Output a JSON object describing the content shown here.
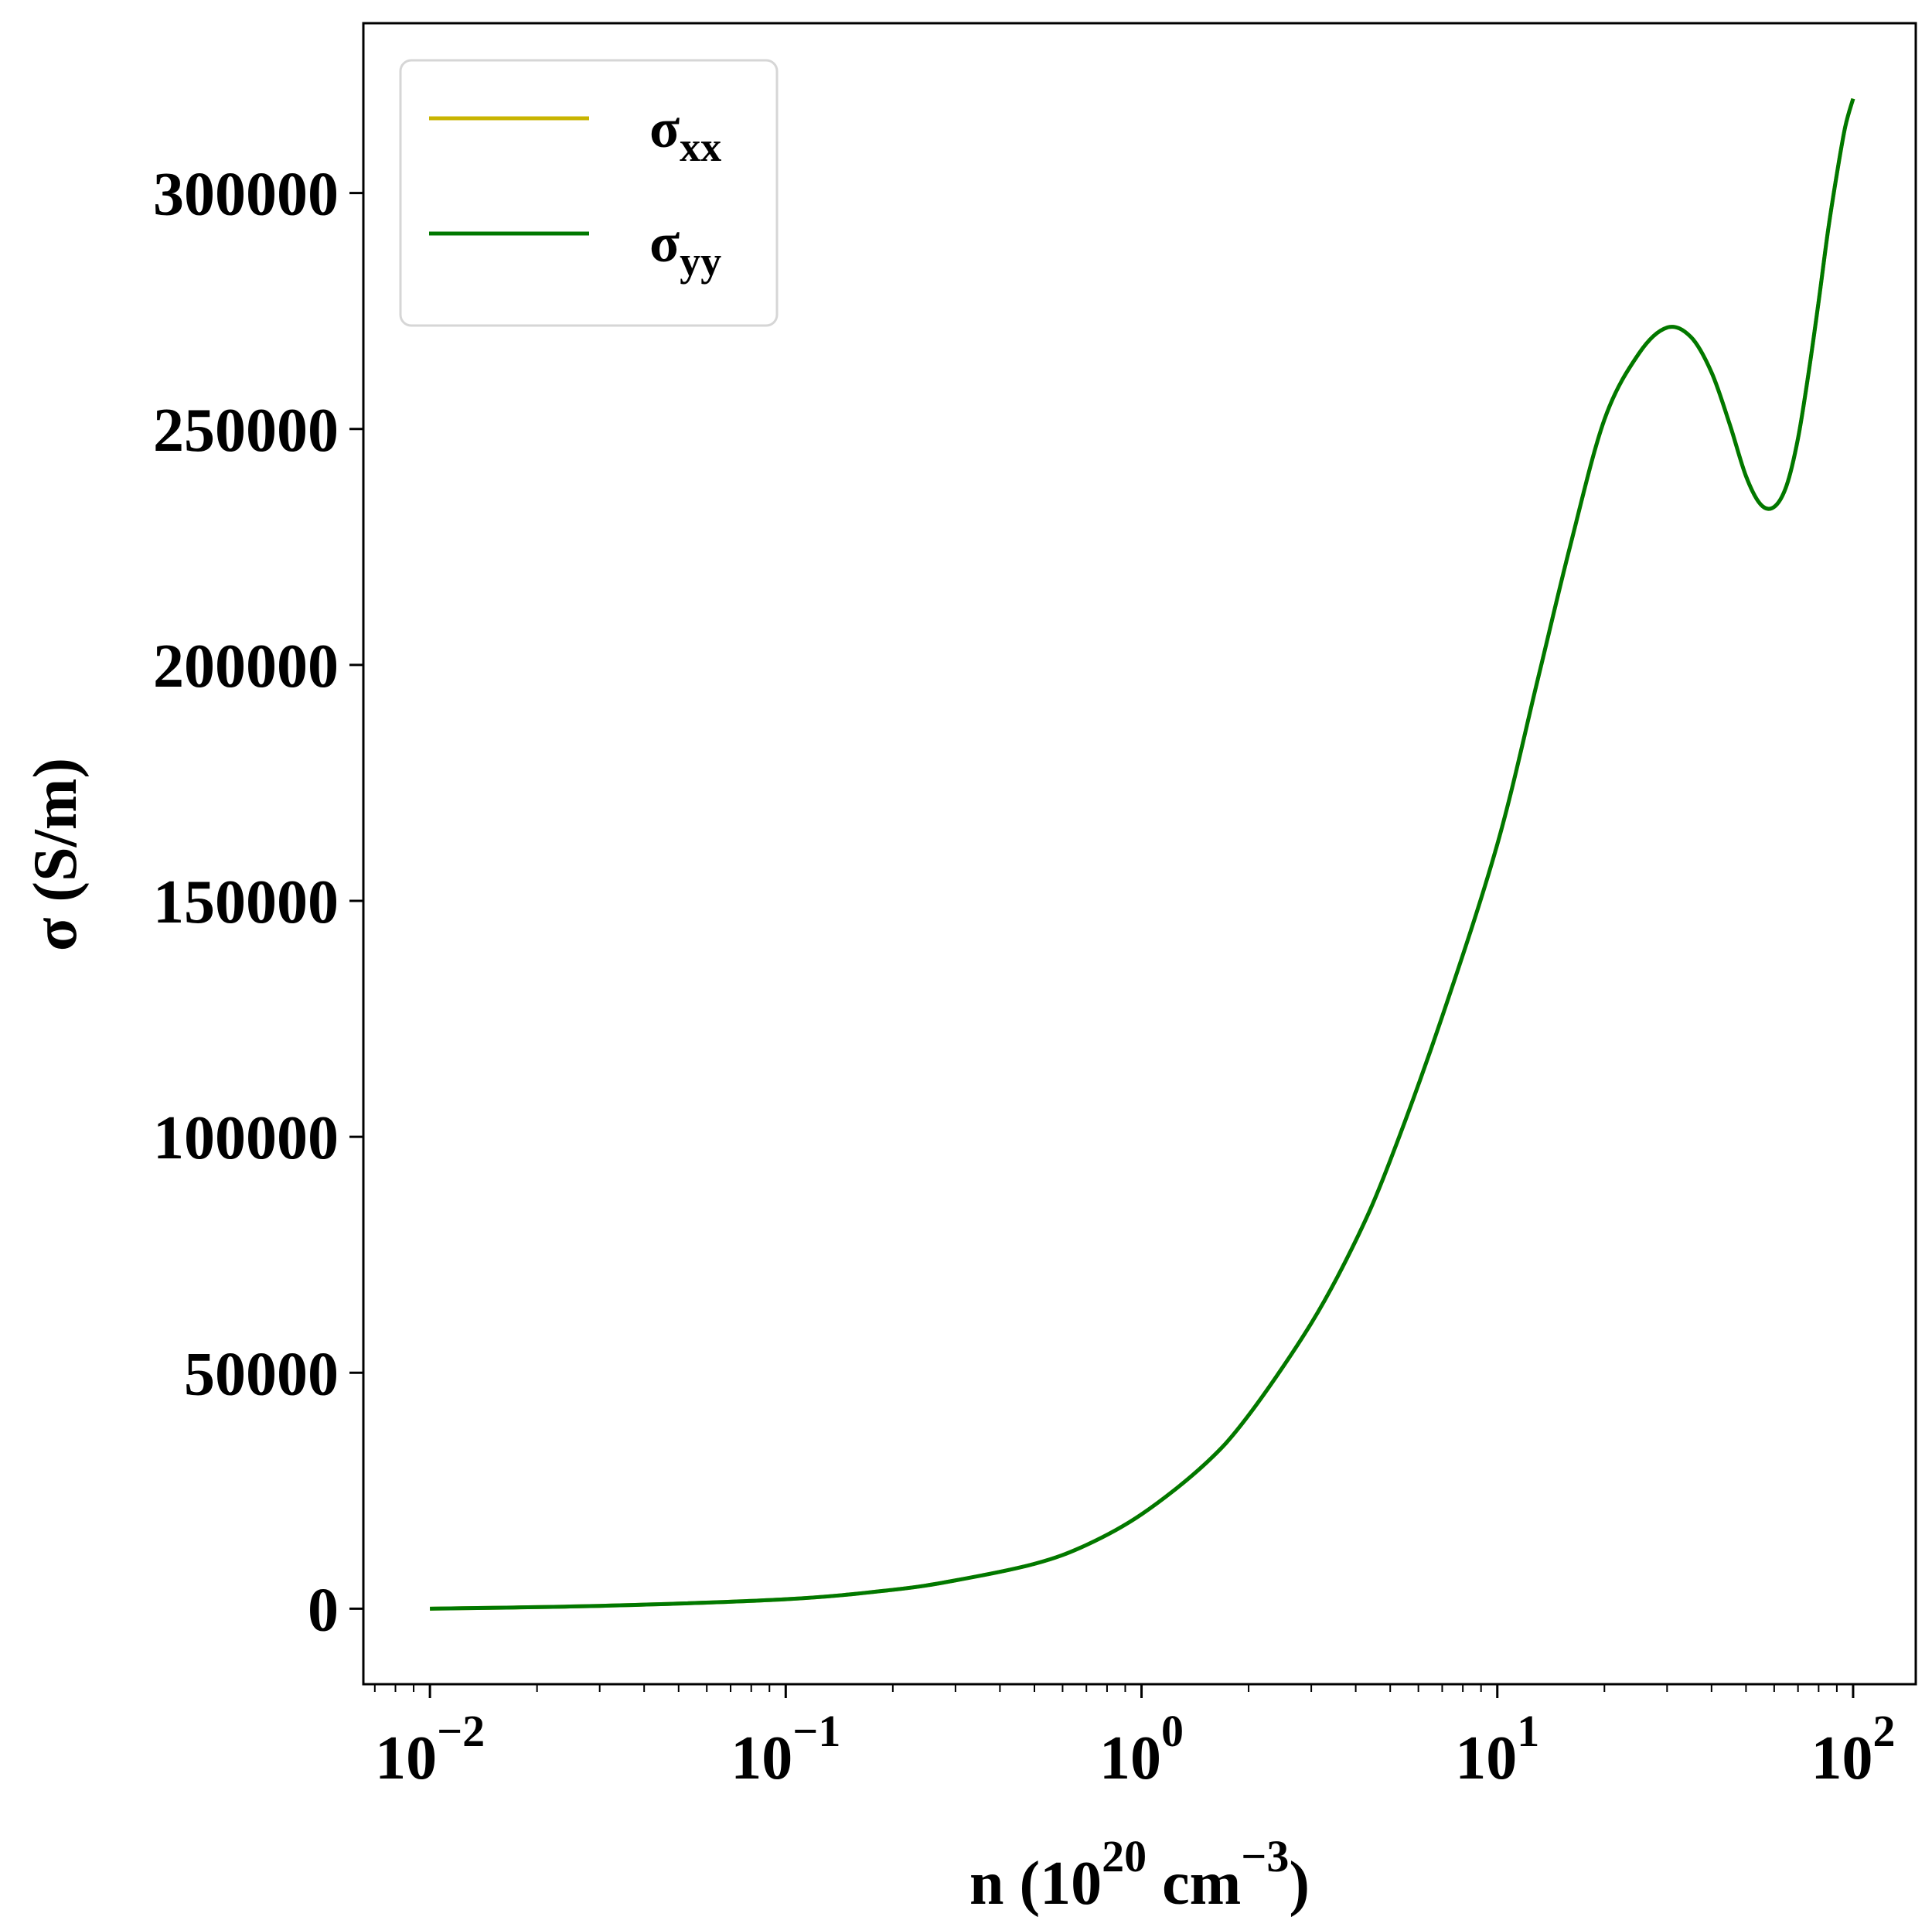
{
  "chart_data": {
    "type": "line",
    "x_scale": "log",
    "xlabel": {
      "base": "n (10",
      "exp1": "20",
      "mid": " cm",
      "exp2": "−3",
      "end": ")"
    },
    "ylabel": "σ (S/m)",
    "xlim": [
      0.0065,
      150
    ],
    "ylim": [
      -16000,
      336000
    ],
    "grid": false,
    "legend_position": "top-left",
    "x_ticks": [
      {
        "base": "10",
        "exp": "−2",
        "value": 0.01
      },
      {
        "base": "10",
        "exp": "−1",
        "value": 0.1
      },
      {
        "base": "10",
        "exp": "0",
        "value": 1
      },
      {
        "base": "10",
        "exp": "1",
        "value": 10
      },
      {
        "base": "10",
        "exp": "2",
        "value": 100
      }
    ],
    "y_ticks": [
      {
        "label": "0",
        "value": 0
      },
      {
        "label": "50000",
        "value": 50000
      },
      {
        "label": "100000",
        "value": 100000
      },
      {
        "label": "150000",
        "value": 150000
      },
      {
        "label": "200000",
        "value": 200000
      },
      {
        "label": "250000",
        "value": 250000
      },
      {
        "label": "300000",
        "value": 300000
      }
    ],
    "x": [
      0.01,
      0.03,
      0.1,
      0.2,
      0.3,
      0.5,
      0.7,
      1,
      1.5,
      2,
      3,
      4,
      5,
      7,
      10,
      13,
      16,
      20,
      25,
      30,
      35,
      40,
      45,
      50,
      55,
      60,
      65,
      70,
      75,
      80,
      85,
      90,
      95,
      100
    ],
    "series": [
      {
        "name_base": "σ",
        "name_sub": "xx",
        "color": "#c8b400",
        "values": [
          0,
          600,
          2000,
          4000,
          6000,
          9500,
          13500,
          20000,
          30500,
          41000,
          60500,
          78000,
          95000,
          125500,
          162000,
          197000,
          225000,
          252000,
          266000,
          271500,
          269500,
          262000,
          251000,
          240000,
          234000,
          233500,
          238000,
          248000,
          262000,
          277000,
          292000,
          304000,
          314000,
          320000
        ]
      },
      {
        "name_base": "σ",
        "name_sub": "yy",
        "color": "#007800",
        "values": [
          0,
          600,
          2000,
          4000,
          6000,
          9500,
          13500,
          20000,
          30500,
          41000,
          60500,
          78000,
          95000,
          125500,
          162000,
          197000,
          225000,
          252000,
          266000,
          271500,
          269500,
          262000,
          251000,
          240000,
          234000,
          233500,
          238000,
          248000,
          262000,
          277000,
          292000,
          304000,
          314000,
          320000
        ]
      }
    ]
  }
}
